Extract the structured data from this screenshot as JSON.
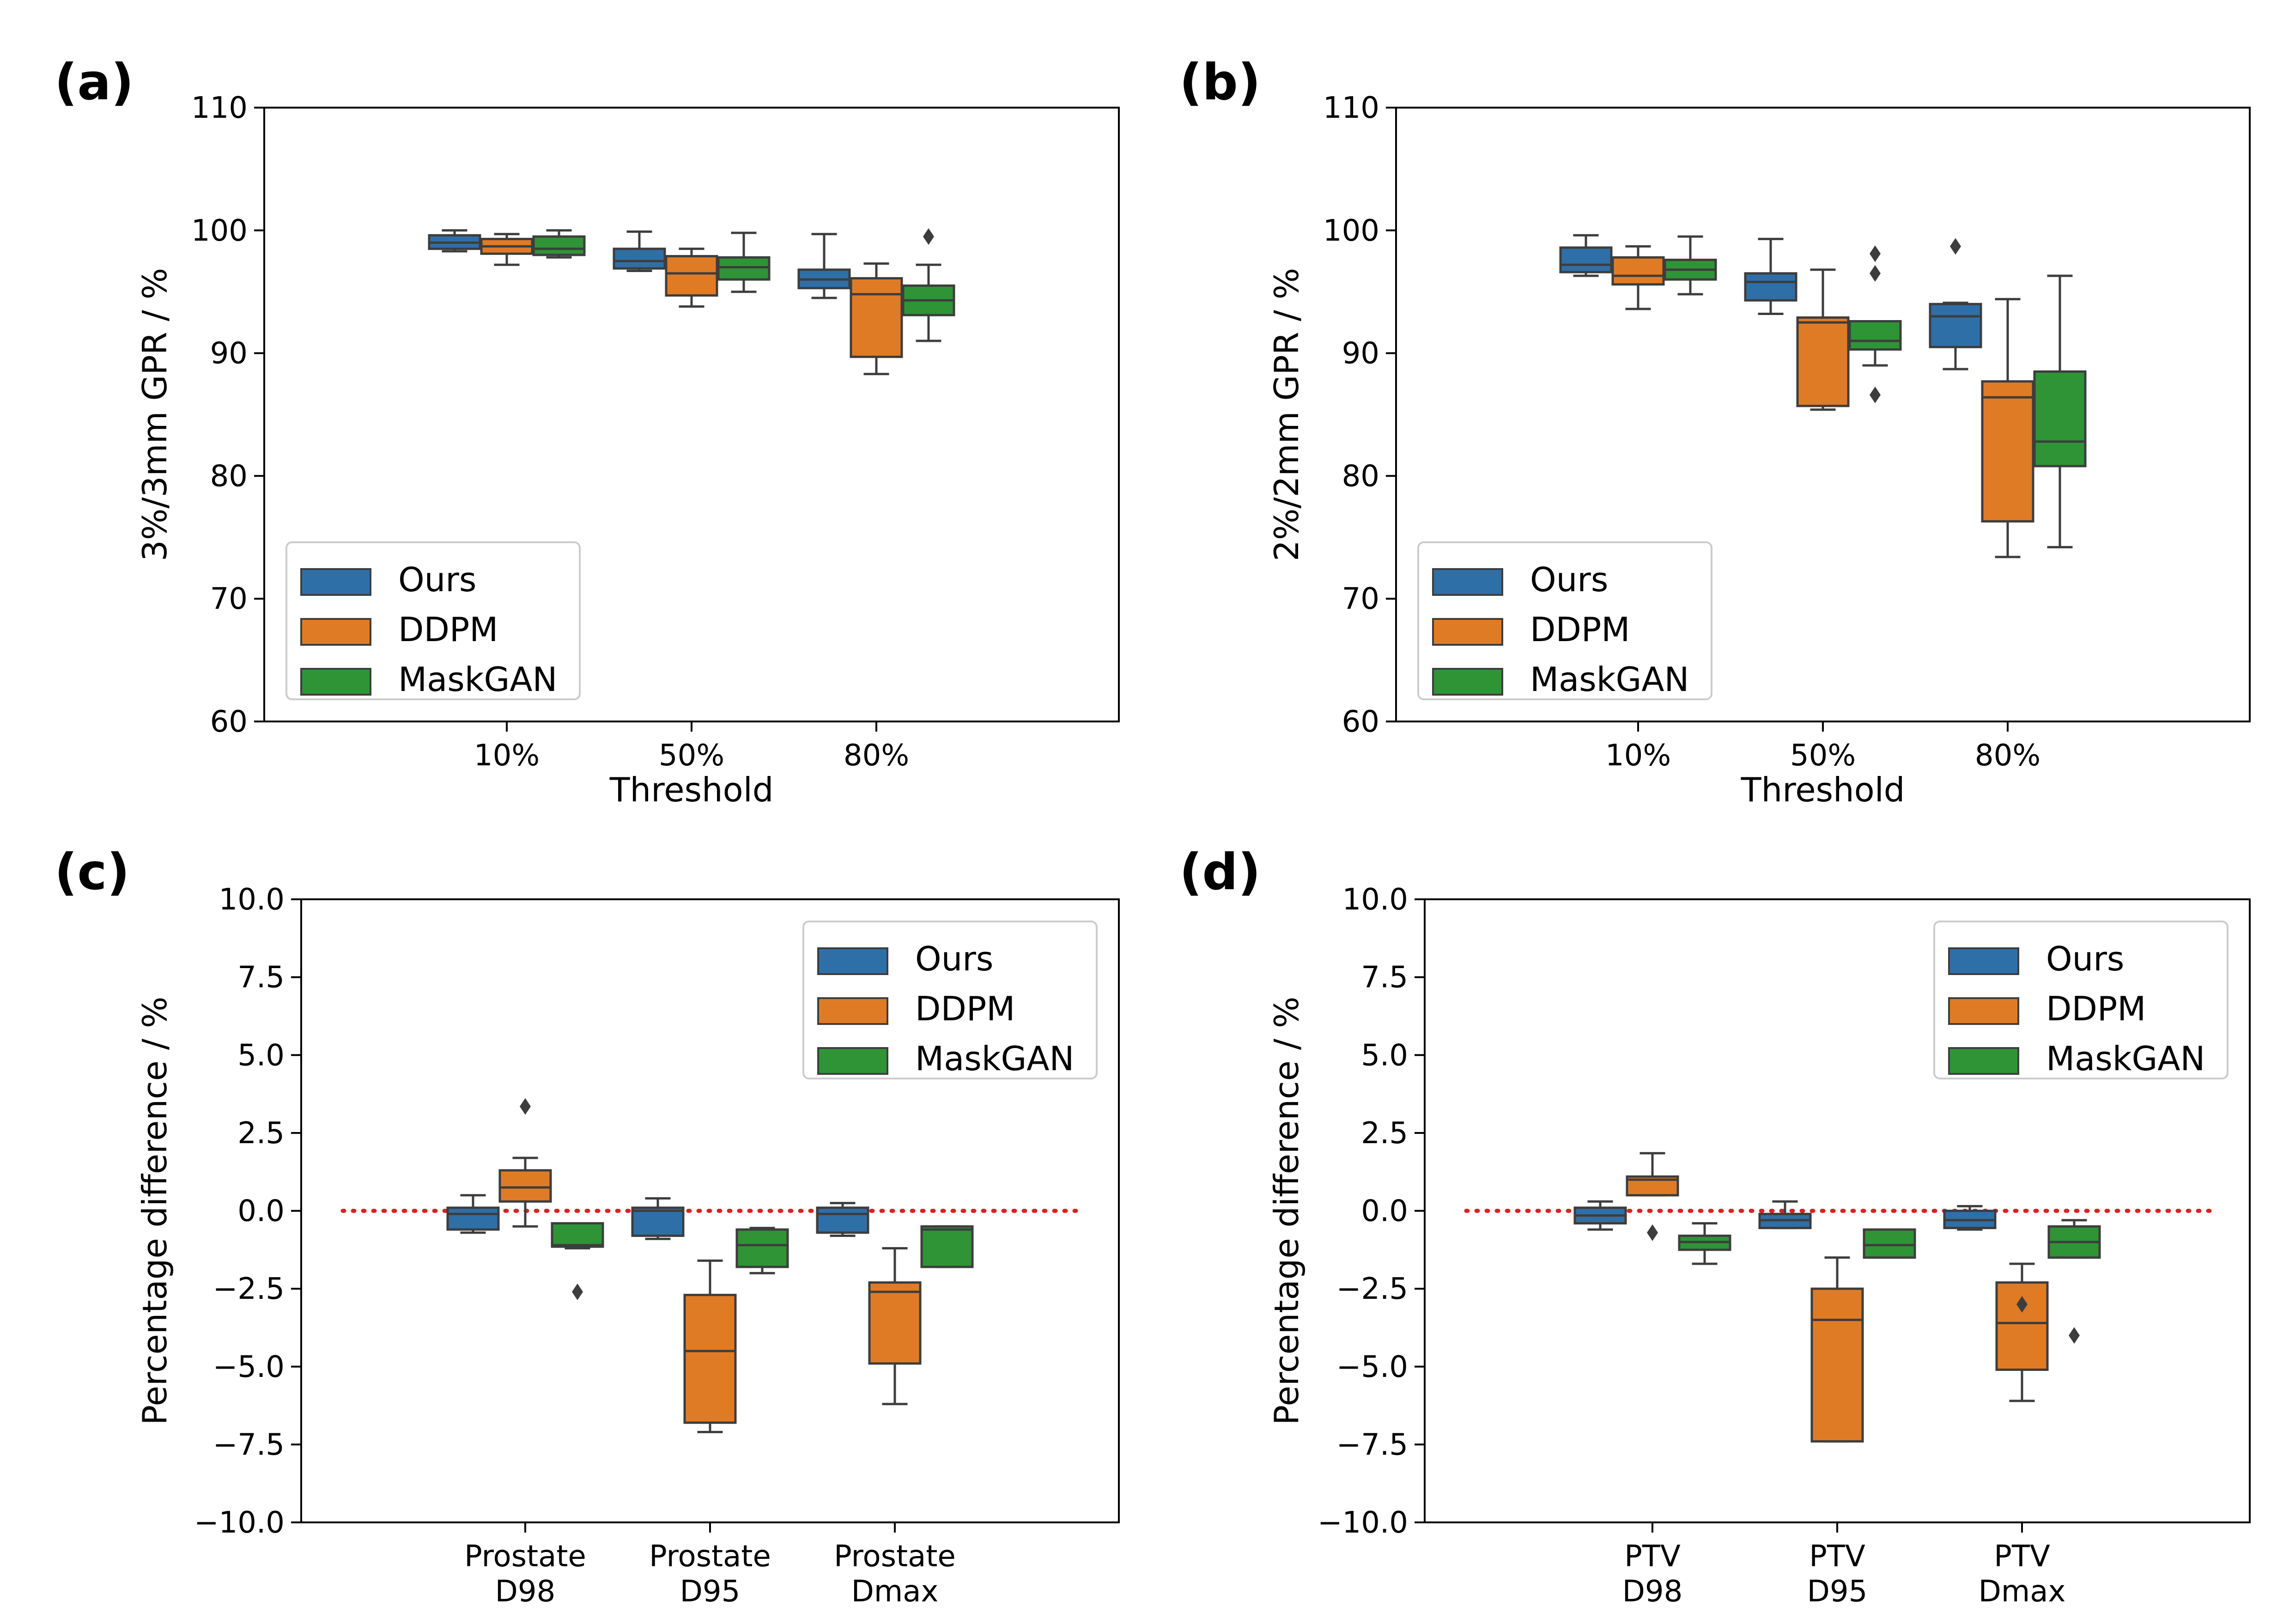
{
  "colors": {
    "Ours": "#2f6fa7",
    "DDPM": "#e07b25",
    "MaskGAN": "#2e9436",
    "line": "#3d3d3d",
    "reference": "#e02020"
  },
  "chart_data": [
    {
      "id": "a",
      "panel_label": "(a)",
      "type": "box",
      "ylabel": "3%/3mm GPR / %",
      "xlabel": "Threshold",
      "categories": [
        "10%",
        "50%",
        "80%"
      ],
      "ylim": [
        60,
        110
      ],
      "yticks": [
        60,
        70,
        80,
        90,
        100,
        110
      ],
      "legend": {
        "position": "lower-left",
        "entries": [
          "Ours",
          "DDPM",
          "MaskGAN"
        ]
      },
      "reference_line": null,
      "series": [
        {
          "name": "Ours",
          "boxes": [
            {
              "whislo": 98.3,
              "q1": 98.5,
              "med": 99.0,
              "q3": 99.6,
              "whishi": 100.0,
              "fliers": []
            },
            {
              "whislo": 96.7,
              "q1": 96.9,
              "med": 97.5,
              "q3": 98.5,
              "whishi": 99.9,
              "fliers": []
            },
            {
              "whislo": 94.5,
              "q1": 95.3,
              "med": 96.0,
              "q3": 96.8,
              "whishi": 99.7,
              "fliers": []
            }
          ]
        },
        {
          "name": "DDPM",
          "boxes": [
            {
              "whislo": 97.2,
              "q1": 98.1,
              "med": 98.7,
              "q3": 99.3,
              "whishi": 99.7,
              "fliers": []
            },
            {
              "whislo": 93.8,
              "q1": 94.7,
              "med": 96.5,
              "q3": 97.9,
              "whishi": 98.5,
              "fliers": []
            },
            {
              "whislo": 88.3,
              "q1": 89.7,
              "med": 94.8,
              "q3": 96.1,
              "whishi": 97.3,
              "fliers": []
            }
          ]
        },
        {
          "name": "MaskGAN",
          "boxes": [
            {
              "whislo": 97.8,
              "q1": 98.0,
              "med": 98.5,
              "q3": 99.5,
              "whishi": 100.0,
              "fliers": []
            },
            {
              "whislo": 95.0,
              "q1": 96.0,
              "med": 97.0,
              "q3": 97.8,
              "whishi": 99.8,
              "fliers": []
            },
            {
              "whislo": 91.0,
              "q1": 93.1,
              "med": 94.3,
              "q3": 95.5,
              "whishi": 97.2,
              "fliers": [
                99.5
              ]
            }
          ]
        }
      ]
    },
    {
      "id": "b",
      "panel_label": "(b)",
      "type": "box",
      "ylabel": "2%/2mm GPR / %",
      "xlabel": "Threshold",
      "categories": [
        "10%",
        "50%",
        "80%"
      ],
      "ylim": [
        60,
        110
      ],
      "yticks": [
        60,
        70,
        80,
        90,
        100,
        110
      ],
      "legend": {
        "position": "lower-left",
        "entries": [
          "Ours",
          "DDPM",
          "MaskGAN"
        ]
      },
      "reference_line": null,
      "series": [
        {
          "name": "Ours",
          "boxes": [
            {
              "whislo": 96.3,
              "q1": 96.6,
              "med": 97.2,
              "q3": 98.6,
              "whishi": 99.6,
              "fliers": []
            },
            {
              "whislo": 93.2,
              "q1": 94.3,
              "med": 95.8,
              "q3": 96.5,
              "whishi": 99.3,
              "fliers": []
            },
            {
              "whislo": 88.7,
              "q1": 90.5,
              "med": 93.0,
              "q3": 94.0,
              "whishi": 94.1,
              "fliers": [
                98.7
              ]
            }
          ]
        },
        {
          "name": "DDPM",
          "boxes": [
            {
              "whislo": 93.6,
              "q1": 95.6,
              "med": 96.3,
              "q3": 97.8,
              "whishi": 98.7,
              "fliers": []
            },
            {
              "whislo": 85.4,
              "q1": 85.7,
              "med": 92.5,
              "q3": 92.9,
              "whishi": 96.8,
              "fliers": []
            },
            {
              "whislo": 73.4,
              "q1": 76.3,
              "med": 86.4,
              "q3": 87.7,
              "whishi": 94.4,
              "fliers": []
            }
          ]
        },
        {
          "name": "MaskGAN",
          "boxes": [
            {
              "whislo": 94.8,
              "q1": 96.0,
              "med": 96.8,
              "q3": 97.6,
              "whishi": 99.5,
              "fliers": []
            },
            {
              "whislo": 89.0,
              "q1": 90.3,
              "med": 91.0,
              "q3": 92.6,
              "whishi": 92.6,
              "fliers": [
                86.6,
                96.5,
                98.1
              ]
            },
            {
              "whislo": 74.2,
              "q1": 80.8,
              "med": 82.8,
              "q3": 88.5,
              "whishi": 96.3,
              "fliers": []
            }
          ]
        }
      ]
    },
    {
      "id": "c",
      "panel_label": "(c)",
      "type": "box",
      "ylabel": "Percentage difference / %",
      "xlabel": "",
      "categories": [
        "Prostate\nD98",
        "Prostate\nD95",
        "Prostate\nDmax"
      ],
      "ylim": [
        -10,
        10
      ],
      "yticks": [
        -10.0,
        -7.5,
        -5.0,
        -2.5,
        0.0,
        2.5,
        5.0,
        7.5,
        10.0
      ],
      "legend": {
        "position": "upper-right",
        "entries": [
          "Ours",
          "DDPM",
          "MaskGAN"
        ]
      },
      "reference_line": 0,
      "series": [
        {
          "name": "Ours",
          "boxes": [
            {
              "whislo": -0.7,
              "q1": -0.6,
              "med": -0.1,
              "q3": 0.1,
              "whishi": 0.5,
              "fliers": []
            },
            {
              "whislo": -0.9,
              "q1": -0.8,
              "med": 0.0,
              "q3": 0.1,
              "whishi": 0.4,
              "fliers": []
            },
            {
              "whislo": -0.8,
              "q1": -0.7,
              "med": -0.1,
              "q3": 0.1,
              "whishi": 0.25,
              "fliers": []
            }
          ]
        },
        {
          "name": "DDPM",
          "boxes": [
            {
              "whislo": -0.5,
              "q1": 0.3,
              "med": 0.75,
              "q3": 1.3,
              "whishi": 1.7,
              "fliers": [
                3.35
              ]
            },
            {
              "whislo": -7.1,
              "q1": -6.8,
              "med": -4.5,
              "q3": -2.7,
              "whishi": -1.6,
              "fliers": []
            },
            {
              "whislo": -6.2,
              "q1": -4.9,
              "med": -2.6,
              "q3": -2.3,
              "whishi": -1.2,
              "fliers": []
            }
          ]
        },
        {
          "name": "MaskGAN",
          "boxes": [
            {
              "whislo": -1.2,
              "q1": -1.15,
              "med": -1.1,
              "q3": -0.4,
              "whishi": -0.4,
              "fliers": [
                -2.6
              ]
            },
            {
              "whislo": -2.0,
              "q1": -1.8,
              "med": -1.1,
              "q3": -0.6,
              "whishi": -0.55,
              "fliers": []
            },
            {
              "whislo": -1.8,
              "q1": -1.8,
              "med": -0.6,
              "q3": -0.5,
              "whishi": -0.5,
              "fliers": []
            }
          ]
        }
      ]
    },
    {
      "id": "d",
      "panel_label": "(d)",
      "type": "box",
      "ylabel": "Percentage difference / %",
      "xlabel": "",
      "categories": [
        "PTV\nD98",
        "PTV\nD95",
        "PTV\nDmax"
      ],
      "ylim": [
        -10,
        10
      ],
      "yticks": [
        -10.0,
        -7.5,
        -5.0,
        -2.5,
        0.0,
        2.5,
        5.0,
        7.5,
        10.0
      ],
      "legend": {
        "position": "upper-right",
        "entries": [
          "Ours",
          "DDPM",
          "MaskGAN"
        ]
      },
      "reference_line": 0,
      "series": [
        {
          "name": "Ours",
          "boxes": [
            {
              "whislo": -0.6,
              "q1": -0.4,
              "med": -0.15,
              "q3": 0.1,
              "whishi": 0.3,
              "fliers": []
            },
            {
              "whislo": -0.55,
              "q1": -0.55,
              "med": -0.3,
              "q3": -0.1,
              "whishi": 0.3,
              "fliers": []
            },
            {
              "whislo": -0.6,
              "q1": -0.55,
              "med": -0.3,
              "q3": 0.0,
              "whishi": 0.15,
              "fliers": []
            }
          ]
        },
        {
          "name": "DDPM",
          "boxes": [
            {
              "whislo": 0.5,
              "q1": 0.5,
              "med": 1.0,
              "q3": 1.1,
              "whishi": 1.85,
              "fliers": [
                -0.7
              ]
            },
            {
              "whislo": -7.4,
              "q1": -7.4,
              "med": -3.5,
              "q3": -2.5,
              "whishi": -1.5,
              "fliers": []
            },
            {
              "whislo": -6.1,
              "q1": -5.1,
              "med": -3.6,
              "q3": -2.3,
              "whishi": -1.7,
              "fliers": [
                -3.0
              ]
            }
          ]
        },
        {
          "name": "MaskGAN",
          "boxes": [
            {
              "whislo": -1.7,
              "q1": -1.25,
              "med": -1.0,
              "q3": -0.8,
              "whishi": -0.4,
              "fliers": []
            },
            {
              "whislo": -1.5,
              "q1": -1.5,
              "med": -1.1,
              "q3": -0.6,
              "whishi": -0.6,
              "fliers": []
            },
            {
              "whislo": -1.5,
              "q1": -1.5,
              "med": -1.0,
              "q3": -0.5,
              "whishi": -0.3,
              "fliers": [
                -4.0
              ]
            }
          ]
        }
      ]
    }
  ]
}
